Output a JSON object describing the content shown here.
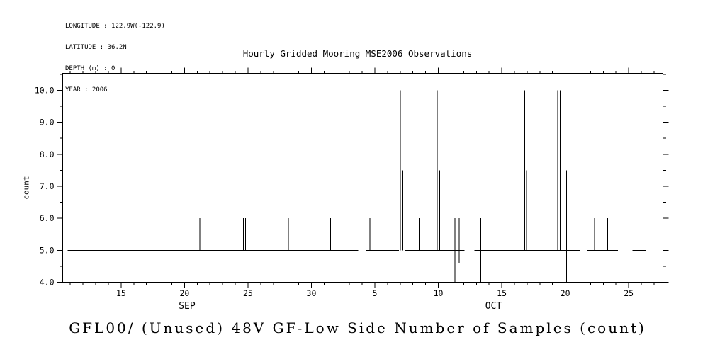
{
  "header_info": {
    "longitude": "LONGITUDE : 122.9W(-122.9)",
    "latitude": "LATITUDE : 36.2N",
    "depth": "DEPTH (m) : 0",
    "year": "YEAR : 2006"
  },
  "chart_data": {
    "type": "line",
    "title": "Hourly Gridded Mooring MSE2006 Observations",
    "caption": "GFL00/ (Unused) 48V GF-Low Side Number of Samples (count)",
    "ylabel": "count",
    "xlabel": "",
    "legend": "none",
    "grid": false,
    "line_color": "#000000",
    "ylim": [
      4.0,
      10.53
    ],
    "yticks": [
      {
        "v": 4.0,
        "label": "4.0"
      },
      {
        "v": 5.0,
        "label": "5.0"
      },
      {
        "v": 6.0,
        "label": "6.0"
      },
      {
        "v": 7.0,
        "label": "7.0"
      },
      {
        "v": 8.0,
        "label": "8.0"
      },
      {
        "v": 9.0,
        "label": "9.0"
      },
      {
        "v": 10.0,
        "label": "10.0"
      }
    ],
    "x_domain_days": [
      10.4,
      57.7
    ],
    "x_units": "days since Sep 1, 2006 (Sep=1-30, Oct=31-61)",
    "xticks": [
      {
        "d": 15,
        "label": "15"
      },
      {
        "d": 20,
        "label": "20"
      },
      {
        "d": 25,
        "label": "25"
      },
      {
        "d": 30,
        "label": "30"
      },
      {
        "d": 35,
        "label": "5"
      },
      {
        "d": 40,
        "label": "10"
      },
      {
        "d": 45,
        "label": "15"
      },
      {
        "d": 50,
        "label": "20"
      },
      {
        "d": 55,
        "label": "25"
      }
    ],
    "month_labels": [
      {
        "d": 20.2,
        "label": "SEP"
      },
      {
        "d": 44.35,
        "label": "OCT"
      }
    ],
    "baseline_value": 5.0,
    "baseline_segments_days": [
      [
        10.8,
        33.7
      ],
      [
        34.3,
        36.9
      ],
      [
        37.35,
        42.05
      ],
      [
        42.85,
        51.2
      ],
      [
        51.75,
        54.15
      ],
      [
        55.3,
        56.4
      ]
    ],
    "spikes": [
      {
        "d": 13.97,
        "top": 6.0,
        "bottom": 5.0
      },
      {
        "d": 21.2,
        "top": 6.0,
        "bottom": 5.0
      },
      {
        "d": 24.65,
        "top": 6.0,
        "bottom": 5.0
      },
      {
        "d": 24.8,
        "top": 6.0,
        "bottom": 5.0
      },
      {
        "d": 28.2,
        "top": 6.0,
        "bottom": 5.0
      },
      {
        "d": 31.5,
        "top": 6.0,
        "bottom": 5.0
      },
      {
        "d": 34.6,
        "top": 6.0,
        "bottom": 5.0
      },
      {
        "d": 37.0,
        "top": 10.0,
        "bottom": 5.0
      },
      {
        "d": 37.2,
        "top": 7.5,
        "bottom": 5.0
      },
      {
        "d": 38.5,
        "top": 6.0,
        "bottom": 5.0
      },
      {
        "d": 39.9,
        "top": 10.0,
        "bottom": 5.0
      },
      {
        "d": 40.1,
        "top": 7.5,
        "bottom": 5.0
      },
      {
        "d": 41.3,
        "top": 6.0,
        "bottom": 4.0
      },
      {
        "d": 41.65,
        "top": 6.0,
        "bottom": 4.6
      },
      {
        "d": 43.35,
        "top": 6.0,
        "bottom": 4.0
      },
      {
        "d": 46.8,
        "top": 10.0,
        "bottom": 5.0
      },
      {
        "d": 46.95,
        "top": 7.5,
        "bottom": 5.0
      },
      {
        "d": 49.4,
        "top": 10.0,
        "bottom": 5.0
      },
      {
        "d": 49.6,
        "top": 10.0,
        "bottom": 5.0
      },
      {
        "d": 50.0,
        "top": 10.0,
        "bottom": 5.0
      },
      {
        "d": 50.1,
        "top": 7.5,
        "bottom": 4.0
      },
      {
        "d": 52.3,
        "top": 6.0,
        "bottom": 5.0
      },
      {
        "d": 53.35,
        "top": 6.0,
        "bottom": 5.0
      },
      {
        "d": 55.75,
        "top": 6.0,
        "bottom": 5.0
      }
    ],
    "ticks_style": {
      "major_len": 8,
      "minor_len": 3.5,
      "x_minor_step_days": 1,
      "y_minor_step": 0.5
    }
  }
}
